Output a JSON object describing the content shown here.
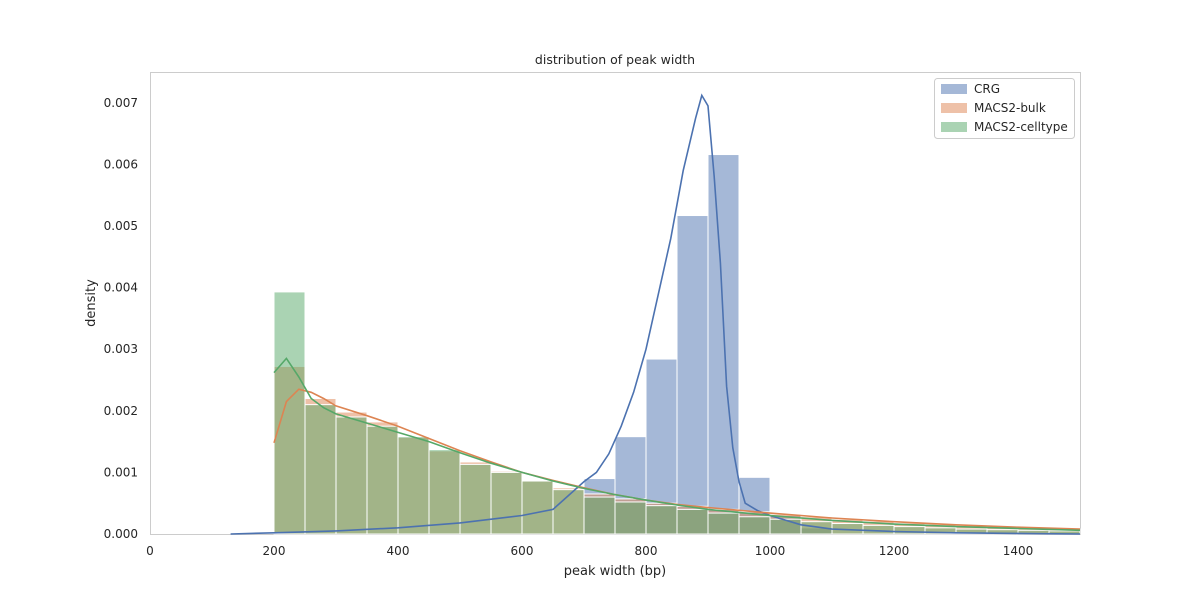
{
  "chart_data": {
    "type": "histogram",
    "title": "distribution of peak width",
    "xlabel": "peak width (bp)",
    "ylabel": "density",
    "xlim": [
      0,
      1500
    ],
    "ylim": [
      0,
      0.0075
    ],
    "xticks": [
      0,
      200,
      400,
      600,
      800,
      1000,
      1200,
      1400
    ],
    "yticks": [
      0.0,
      0.001,
      0.002,
      0.003,
      0.004,
      0.005,
      0.006,
      0.007
    ],
    "ytick_labels": [
      "0.000",
      "0.001",
      "0.002",
      "0.003",
      "0.004",
      "0.005",
      "0.006",
      "0.007"
    ],
    "grid": false,
    "legend_position": "top-right",
    "colors": {
      "CRG": "#4c72b0",
      "MACS2-bulk": "#dd8452",
      "MACS2-celltype": "#55a868"
    },
    "series": [
      {
        "name": "CRG",
        "bin_width": 50,
        "bins": [
          [
            700,
            0.0009
          ],
          [
            750,
            0.00158
          ],
          [
            800,
            0.00284
          ],
          [
            850,
            0.00517
          ],
          [
            900,
            0.00616
          ],
          [
            950,
            0.00092
          ],
          [
            1000,
            0.0003
          ],
          [
            1050,
            0.0001
          ]
        ],
        "kde_x": [
          130,
          200,
          300,
          400,
          500,
          600,
          650,
          700,
          720,
          740,
          760,
          780,
          800,
          820,
          840,
          860,
          880,
          890,
          900,
          910,
          920,
          930,
          940,
          950,
          960,
          980,
          1000,
          1050,
          1100,
          1200,
          1300,
          1400,
          1500
        ],
        "kde_y": [
          0.0,
          2e-05,
          5e-05,
          0.0001,
          0.00018,
          0.0003,
          0.0004,
          0.00085,
          0.001,
          0.0013,
          0.00175,
          0.0023,
          0.003,
          0.0039,
          0.0048,
          0.0059,
          0.00675,
          0.00712,
          0.00695,
          0.0058,
          0.0044,
          0.0024,
          0.0014,
          0.00085,
          0.0005,
          0.00038,
          0.0003,
          0.00015,
          8e-05,
          4e-05,
          2e-05,
          1e-05,
          0.0
        ]
      },
      {
        "name": "MACS2-bulk",
        "bin_width": 50,
        "bins": [
          [
            200,
            0.00272
          ],
          [
            250,
            0.0022
          ],
          [
            300,
            0.00198
          ],
          [
            350,
            0.00182
          ],
          [
            400,
            0.00157
          ],
          [
            450,
            0.00135
          ],
          [
            500,
            0.00117
          ],
          [
            550,
            0.00102
          ],
          [
            600,
            0.00087
          ],
          [
            650,
            0.00075
          ],
          [
            700,
            0.00065
          ],
          [
            750,
            0.00057
          ],
          [
            800,
            0.0005
          ],
          [
            850,
            0.00045
          ],
          [
            900,
            0.0004
          ],
          [
            950,
            0.00036
          ],
          [
            1000,
            0.00032
          ],
          [
            1050,
            0.00028
          ],
          [
            1100,
            0.00024
          ],
          [
            1150,
            0.00021
          ],
          [
            1200,
            0.00018
          ],
          [
            1250,
            0.00016
          ],
          [
            1300,
            0.00014
          ],
          [
            1350,
            0.00012
          ],
          [
            1400,
            0.0001
          ],
          [
            1450,
            8e-05
          ]
        ],
        "kde_x": [
          200,
          220,
          240,
          260,
          280,
          300,
          350,
          400,
          450,
          500,
          550,
          600,
          650,
          700,
          750,
          800,
          850,
          900,
          1000,
          1100,
          1200,
          1300,
          1400,
          1500
        ],
        "kde_y": [
          0.00148,
          0.00215,
          0.00235,
          0.0023,
          0.0022,
          0.00208,
          0.00192,
          0.00175,
          0.00155,
          0.00135,
          0.00117,
          0.001,
          0.00087,
          0.00075,
          0.00064,
          0.00055,
          0.00048,
          0.00043,
          0.00034,
          0.00026,
          0.0002,
          0.00015,
          0.00011,
          8e-05
        ]
      },
      {
        "name": "MACS2-celltype",
        "bin_width": 50,
        "bins": [
          [
            200,
            0.00393
          ],
          [
            250,
            0.0021
          ],
          [
            300,
            0.0019
          ],
          [
            350,
            0.00175
          ],
          [
            400,
            0.00158
          ],
          [
            450,
            0.00137
          ],
          [
            500,
            0.00113
          ],
          [
            550,
            0.001
          ],
          [
            600,
            0.00086
          ],
          [
            650,
            0.00072
          ],
          [
            700,
            0.0006
          ],
          [
            750,
            0.00052
          ],
          [
            800,
            0.00046
          ],
          [
            850,
            0.0004
          ],
          [
            900,
            0.00034
          ],
          [
            950,
            0.00028
          ],
          [
            1000,
            0.00024
          ],
          [
            1050,
            0.0002
          ],
          [
            1100,
            0.00017
          ],
          [
            1150,
            0.00014
          ],
          [
            1200,
            0.00012
          ],
          [
            1250,
            0.0001
          ],
          [
            1300,
            8e-05
          ],
          [
            1350,
            7e-05
          ],
          [
            1400,
            6e-05
          ],
          [
            1450,
            5e-05
          ]
        ],
        "kde_x": [
          200,
          220,
          240,
          260,
          280,
          300,
          350,
          400,
          450,
          500,
          550,
          600,
          650,
          700,
          750,
          800,
          850,
          900,
          1000,
          1100,
          1200,
          1300,
          1400,
          1500
        ],
        "kde_y": [
          0.00262,
          0.00285,
          0.00255,
          0.0022,
          0.00205,
          0.00195,
          0.0018,
          0.00165,
          0.0015,
          0.00132,
          0.00115,
          0.001,
          0.00086,
          0.00074,
          0.00064,
          0.00055,
          0.00047,
          0.0004,
          0.0003,
          0.00022,
          0.00016,
          0.00012,
          9e-05,
          6e-05
        ]
      }
    ]
  }
}
